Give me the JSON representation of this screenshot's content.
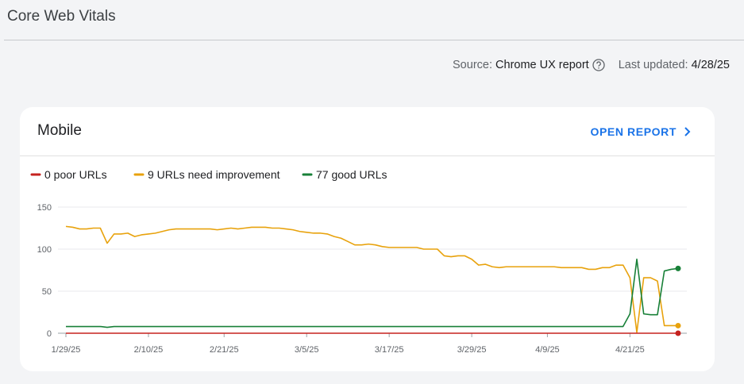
{
  "header": {
    "title": "Core Web Vitals",
    "source_label": "Source:",
    "source": "Chrome UX report",
    "updated_label": "Last updated:",
    "updated": "4/28/25"
  },
  "card": {
    "title": "Mobile",
    "action": "OPEN REPORT"
  },
  "chart_data": {
    "type": "line",
    "x": [
      "1/29/25",
      "1/30/25",
      "1/31/25",
      "2/1/25",
      "2/2/25",
      "2/3/25",
      "2/4/25",
      "2/5/25",
      "2/6/25",
      "2/7/25",
      "2/8/25",
      "2/9/25",
      "2/10/25",
      "2/11/25",
      "2/12/25",
      "2/13/25",
      "2/14/25",
      "2/15/25",
      "2/16/25",
      "2/17/25",
      "2/18/25",
      "2/19/25",
      "2/20/25",
      "2/21/25",
      "2/22/25",
      "2/23/25",
      "2/24/25",
      "2/25/25",
      "2/26/25",
      "2/27/25",
      "2/28/25",
      "3/1/25",
      "3/2/25",
      "3/3/25",
      "3/4/25",
      "3/5/25",
      "3/6/25",
      "3/7/25",
      "3/8/25",
      "3/9/25",
      "3/10/25",
      "3/11/25",
      "3/12/25",
      "3/13/25",
      "3/14/25",
      "3/15/25",
      "3/16/25",
      "3/17/25",
      "3/18/25",
      "3/19/25",
      "3/20/25",
      "3/21/25",
      "3/22/25",
      "3/23/25",
      "3/24/25",
      "3/25/25",
      "3/26/25",
      "3/27/25",
      "3/28/25",
      "3/29/25",
      "3/30/25",
      "3/31/25",
      "4/1/25",
      "4/2/25",
      "4/3/25",
      "4/4/25",
      "4/5/25",
      "4/6/25",
      "4/7/25",
      "4/8/25",
      "4/9/25",
      "4/10/25",
      "4/11/25",
      "4/12/25",
      "4/13/25",
      "4/14/25",
      "4/15/25",
      "4/16/25",
      "4/17/25",
      "4/18/25",
      "4/19/25",
      "4/20/25",
      "4/21/25",
      "4/22/25",
      "4/23/25",
      "4/24/25",
      "4/25/25",
      "4/26/25",
      "4/27/25",
      "4/28/25"
    ],
    "xlim": [
      "1/29/25",
      "4/28/25"
    ],
    "xticks": [
      "1/29/25",
      "2/10/25",
      "2/21/25",
      "3/5/25",
      "3/17/25",
      "3/29/25",
      "4/9/25",
      "4/21/25"
    ],
    "ylim": [
      0,
      150
    ],
    "yticks": [
      0,
      50,
      100,
      150
    ],
    "grid": true,
    "series": [
      {
        "name": "0 poor URLs",
        "color": "#c5221f",
        "values": [
          0,
          0,
          0,
          0,
          0,
          0,
          0,
          0,
          0,
          0,
          0,
          0,
          0,
          0,
          0,
          0,
          0,
          0,
          0,
          0,
          0,
          0,
          0,
          0,
          0,
          0,
          0,
          0,
          0,
          0,
          0,
          0,
          0,
          0,
          0,
          0,
          0,
          0,
          0,
          0,
          0,
          0,
          0,
          0,
          0,
          0,
          0,
          0,
          0,
          0,
          0,
          0,
          0,
          0,
          0,
          0,
          0,
          0,
          0,
          0,
          0,
          0,
          0,
          0,
          0,
          0,
          0,
          0,
          0,
          0,
          0,
          0,
          0,
          0,
          0,
          0,
          0,
          0,
          0,
          0,
          0,
          0,
          0,
          0,
          0,
          0,
          0,
          0,
          0,
          0
        ]
      },
      {
        "name": "9 URLs need improvement",
        "color": "#e8a20c",
        "values": [
          127,
          126,
          124,
          124,
          125,
          125,
          107,
          118,
          118,
          119,
          115,
          117,
          118,
          119,
          121,
          123,
          124,
          124,
          124,
          124,
          124,
          124,
          123,
          124,
          125,
          124,
          125,
          126,
          126,
          126,
          125,
          125,
          124,
          123,
          121,
          120,
          119,
          119,
          118,
          115,
          113,
          109,
          105,
          105,
          106,
          105,
          103,
          102,
          102,
          102,
          102,
          102,
          100,
          100,
          100,
          92,
          91,
          92,
          92,
          88,
          81,
          82,
          79,
          78,
          79,
          79,
          79,
          79,
          79,
          79,
          79,
          79,
          78,
          78,
          78,
          78,
          76,
          76,
          78,
          78,
          81,
          81,
          66,
          1,
          66,
          66,
          62,
          9,
          9,
          9
        ]
      },
      {
        "name": "77 good URLs",
        "color": "#188038",
        "values": [
          8,
          8,
          8,
          8,
          8,
          8,
          7,
          8,
          8,
          8,
          8,
          8,
          8,
          8,
          8,
          8,
          8,
          8,
          8,
          8,
          8,
          8,
          8,
          8,
          8,
          8,
          8,
          8,
          8,
          8,
          8,
          8,
          8,
          8,
          8,
          8,
          8,
          8,
          8,
          8,
          8,
          8,
          8,
          8,
          8,
          8,
          8,
          8,
          8,
          8,
          8,
          8,
          8,
          8,
          8,
          8,
          8,
          8,
          8,
          8,
          8,
          8,
          8,
          8,
          8,
          8,
          8,
          8,
          8,
          8,
          8,
          8,
          8,
          8,
          8,
          8,
          8,
          8,
          8,
          8,
          8,
          8,
          23,
          88,
          23,
          22,
          22,
          74,
          76,
          77
        ]
      }
    ]
  }
}
